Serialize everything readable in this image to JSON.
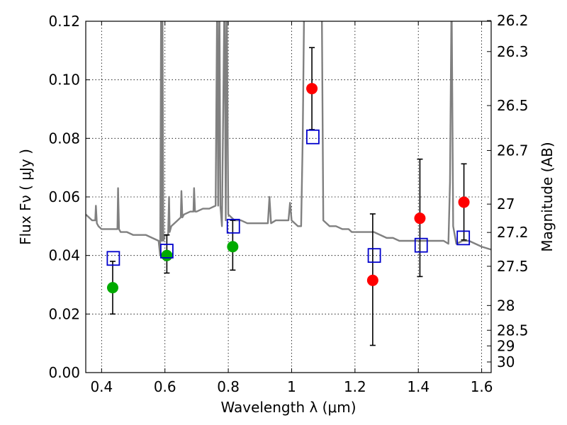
{
  "chart_data": {
    "type": "scatter",
    "xlabel": "Wavelength  λ (μm)",
    "ylabel": "Flux  Fν  ( μJy )",
    "ylabel_right": "Magnitude (AB)",
    "xlim": [
      0.35,
      1.63
    ],
    "ylim": [
      0.0,
      0.12
    ],
    "x_ticks": [
      "0.4",
      "0.6",
      "0.8",
      "1",
      "1.2",
      "1.4",
      "1.6"
    ],
    "x_tick_values": [
      0.4,
      0.6,
      0.8,
      1.0,
      1.2,
      1.4,
      1.6
    ],
    "y_ticks": [
      "0.00",
      "0.02",
      "0.04",
      "0.06",
      "0.08",
      "0.10",
      "0.12"
    ],
    "y_tick_values": [
      0.0,
      0.02,
      0.04,
      0.06,
      0.08,
      0.1,
      0.12
    ],
    "right_ticks": [
      "26.2",
      "26.3",
      "26.5",
      "26.7",
      "27",
      "27.2",
      "27.5",
      "28",
      "28.5",
      "29",
      "30"
    ],
    "right_tick_values": [
      26.2,
      26.3,
      26.5,
      26.7,
      27.0,
      27.2,
      27.5,
      28.0,
      28.5,
      29.0,
      30.0
    ],
    "grid": true,
    "colors": {
      "spectrum": "#808080",
      "green_points": "#00aa00",
      "red_points": "#ff0000",
      "model_squares": "#0000cc",
      "error_bars": "#000000"
    },
    "series": [
      {
        "marker": "circle",
        "color": "#00aa00",
        "points": [
          {
            "x": 0.435,
            "y": 0.029,
            "err_low": 0.02,
            "err_high": 0.038
          },
          {
            "x": 0.606,
            "y": 0.04,
            "err_low": 0.034,
            "err_high": 0.047
          },
          {
            "x": 0.814,
            "y": 0.043,
            "err_low": 0.035,
            "err_high": 0.052
          }
        ]
      },
      {
        "marker": "circle",
        "color": "#ff0000",
        "points": [
          {
            "x": 1.064,
            "y": 0.097,
            "err_low": 0.083,
            "err_high": 0.111
          },
          {
            "x": 1.256,
            "y": 0.0315,
            "err_low": 0.0093,
            "err_high": 0.0542
          },
          {
            "x": 1.405,
            "y": 0.0527,
            "err_low": 0.0328,
            "err_high": 0.0729
          },
          {
            "x": 1.544,
            "y": 0.0582,
            "err_low": 0.0453,
            "err_high": 0.0713
          }
        ]
      },
      {
        "marker": "open-square",
        "color": "#0000cc",
        "points": [
          {
            "x": 0.437,
            "y": 0.039
          },
          {
            "x": 0.606,
            "y": 0.0415
          },
          {
            "x": 0.816,
            "y": 0.05
          },
          {
            "x": 1.067,
            "y": 0.0805
          },
          {
            "x": 1.261,
            "y": 0.04
          },
          {
            "x": 1.409,
            "y": 0.0435
          },
          {
            "x": 1.542,
            "y": 0.046
          }
        ]
      }
    ],
    "spectrum": {
      "x": [
        0.35,
        0.37,
        0.38,
        0.382,
        0.385,
        0.39,
        0.4,
        0.42,
        0.44,
        0.45,
        0.452,
        0.455,
        0.46,
        0.48,
        0.5,
        0.52,
        0.54,
        0.56,
        0.58,
        0.585,
        0.588,
        0.59,
        0.592,
        0.595,
        0.6,
        0.605,
        0.61,
        0.613,
        0.615,
        0.62,
        0.64,
        0.65,
        0.652,
        0.655,
        0.66,
        0.68,
        0.69,
        0.692,
        0.695,
        0.7,
        0.72,
        0.74,
        0.76,
        0.765,
        0.768,
        0.772,
        0.775,
        0.78,
        0.788,
        0.792,
        0.795,
        0.8,
        0.82,
        0.84,
        0.86,
        0.88,
        0.9,
        0.925,
        0.93,
        0.935,
        0.95,
        0.97,
        0.99,
        0.995,
        1.0,
        1.01,
        1.02,
        1.03,
        1.035,
        1.04,
        1.05,
        1.09,
        1.095,
        1.1,
        1.12,
        1.14,
        1.16,
        1.18,
        1.19,
        1.2,
        1.21,
        1.22,
        1.24,
        1.26,
        1.28,
        1.3,
        1.32,
        1.34,
        1.36,
        1.38,
        1.4,
        1.42,
        1.44,
        1.46,
        1.48,
        1.495,
        1.5,
        1.505,
        1.51,
        1.52,
        1.54,
        1.56,
        1.58,
        1.6,
        1.63
      ],
      "y": [
        0.054,
        0.052,
        0.052,
        0.057,
        0.051,
        0.05,
        0.049,
        0.049,
        0.049,
        0.049,
        0.063,
        0.049,
        0.048,
        0.048,
        0.047,
        0.047,
        0.047,
        0.046,
        0.045,
        0.04,
        0.13,
        0.045,
        0.13,
        0.045,
        0.047,
        0.047,
        0.047,
        0.06,
        0.048,
        0.05,
        0.052,
        0.053,
        0.062,
        0.053,
        0.054,
        0.055,
        0.055,
        0.063,
        0.055,
        0.055,
        0.056,
        0.056,
        0.057,
        0.13,
        0.057,
        0.13,
        0.057,
        0.05,
        0.13,
        0.052,
        0.13,
        0.054,
        0.052,
        0.052,
        0.051,
        0.051,
        0.051,
        0.051,
        0.06,
        0.051,
        0.052,
        0.052,
        0.052,
        0.058,
        0.052,
        0.051,
        0.05,
        0.05,
        0.08,
        0.13,
        0.13,
        0.13,
        0.13,
        0.052,
        0.05,
        0.05,
        0.049,
        0.049,
        0.048,
        0.048,
        0.048,
        0.048,
        0.048,
        0.048,
        0.047,
        0.046,
        0.046,
        0.045,
        0.045,
        0.045,
        0.045,
        0.045,
        0.045,
        0.045,
        0.045,
        0.044,
        0.065,
        0.13,
        0.05,
        0.044,
        0.045,
        0.045,
        0.044,
        0.043,
        0.042
      ]
    }
  }
}
